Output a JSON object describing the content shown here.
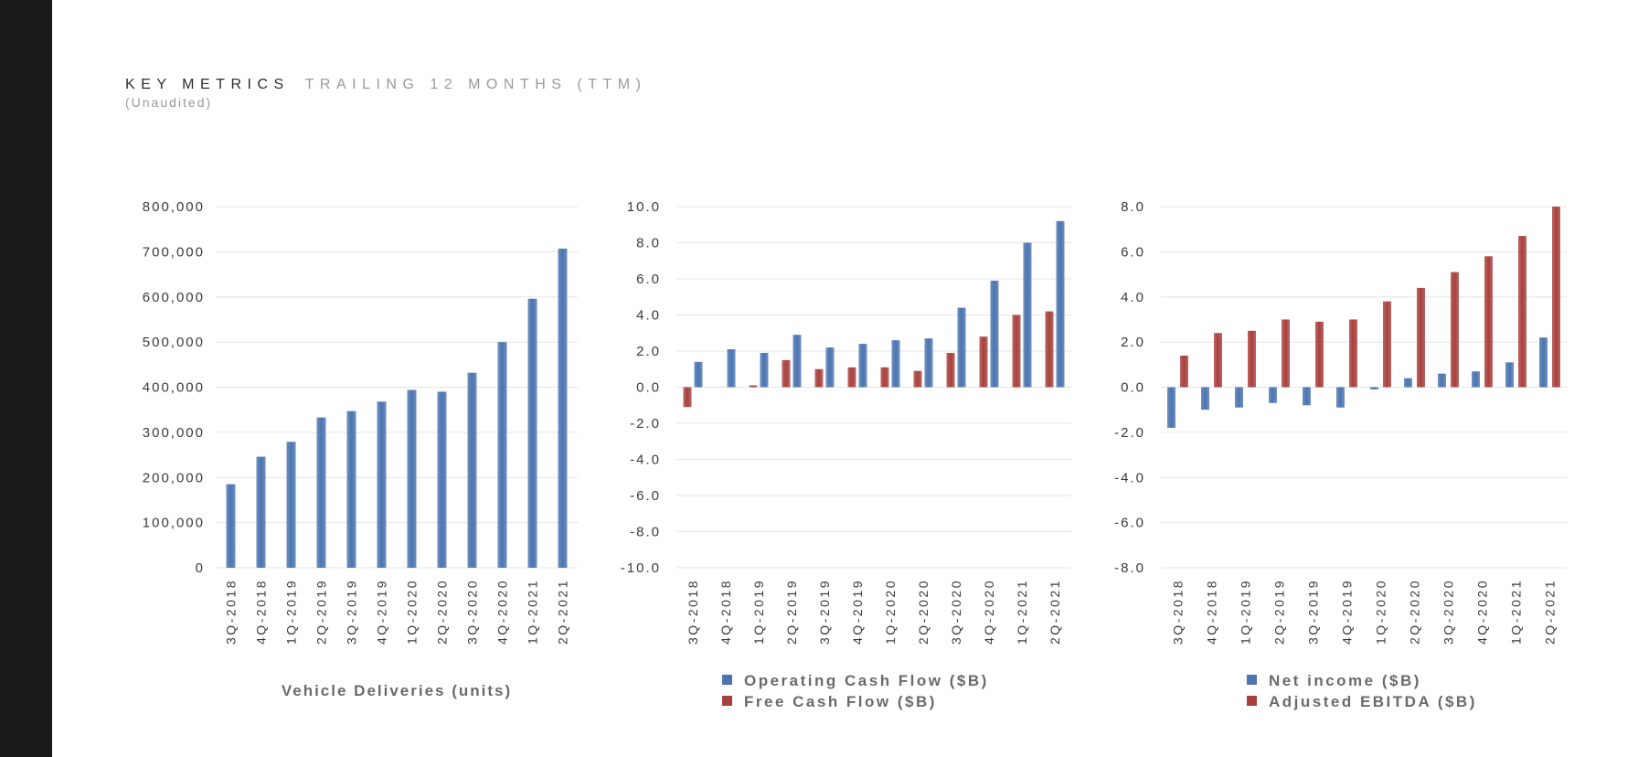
{
  "header": {
    "title": "KEY METRICS",
    "title_suffix": "TRAILING 12 MONTHS (TTM)",
    "subtitle": "(Unaudited)"
  },
  "colors": {
    "blue": "#4b74b0",
    "red": "#a8403e",
    "grid": "#e4e4e4"
  },
  "chart_data": [
    {
      "type": "bar",
      "xlabel": "Vehicle Deliveries (units)",
      "categories": [
        "3Q-2018",
        "4Q-2018",
        "1Q-2019",
        "2Q-2019",
        "3Q-2019",
        "4Q-2019",
        "1Q-2020",
        "2Q-2020",
        "3Q-2020",
        "4Q-2020",
        "1Q-2021",
        "2Q-2021"
      ],
      "series": [
        {
          "values": [
            185000,
            246000,
            279000,
            333000,
            347000,
            368000,
            394000,
            390000,
            432000,
            500000,
            596000,
            707000
          ]
        }
      ],
      "ylim": [
        0,
        800000
      ],
      "yticks": [
        "0",
        "100,000",
        "200,000",
        "300,000",
        "400,000",
        "500,000",
        "600,000",
        "700,000",
        "800,000"
      ],
      "grid": true
    },
    {
      "type": "bar",
      "categories": [
        "3Q-2018",
        "4Q-2018",
        "1Q-2019",
        "2Q-2019",
        "3Q-2019",
        "4Q-2019",
        "1Q-2020",
        "2Q-2020",
        "3Q-2020",
        "4Q-2020",
        "1Q-2021",
        "2Q-2021"
      ],
      "series": [
        {
          "name": "Operating Cash Flow ($B)",
          "values": [
            1.4,
            2.1,
            1.9,
            2.9,
            2.2,
            2.4,
            2.6,
            2.7,
            4.4,
            5.9,
            8.0,
            9.2
          ]
        },
        {
          "name": "Free Cash Flow ($B)",
          "values": [
            -1.1,
            0.0,
            0.1,
            1.5,
            1.0,
            1.1,
            1.1,
            0.9,
            1.9,
            2.8,
            4.0,
            4.2
          ]
        }
      ],
      "ylim": [
        -10,
        10
      ],
      "yticks": [
        "-10.0",
        "-8.0",
        "-6.0",
        "-4.0",
        "-2.0",
        "0.0",
        "2.0",
        "4.0",
        "6.0",
        "8.0",
        "10.0"
      ],
      "legend": "bottom",
      "grid": true
    },
    {
      "type": "bar",
      "categories": [
        "3Q-2018",
        "4Q-2018",
        "1Q-2019",
        "2Q-2019",
        "3Q-2019",
        "4Q-2019",
        "1Q-2020",
        "2Q-2020",
        "3Q-2020",
        "4Q-2020",
        "1Q-2021",
        "2Q-2021"
      ],
      "series": [
        {
          "name": "Net income ($B)",
          "values": [
            -1.8,
            -1.0,
            -0.9,
            -0.7,
            -0.8,
            -0.9,
            -0.1,
            0.4,
            0.6,
            0.7,
            1.1,
            2.2
          ]
        },
        {
          "name": "Adjusted EBITDA ($B)",
          "values": [
            1.4,
            2.4,
            2.5,
            3.0,
            2.9,
            3.0,
            3.8,
            4.4,
            5.1,
            5.8,
            6.7,
            8.0
          ]
        }
      ],
      "ylim": [
        -8,
        8
      ],
      "yticks": [
        "-8.0",
        "-6.0",
        "-4.0",
        "-2.0",
        "0.0",
        "2.0",
        "4.0",
        "6.0",
        "8.0"
      ],
      "legend": "bottom",
      "grid": true
    }
  ]
}
